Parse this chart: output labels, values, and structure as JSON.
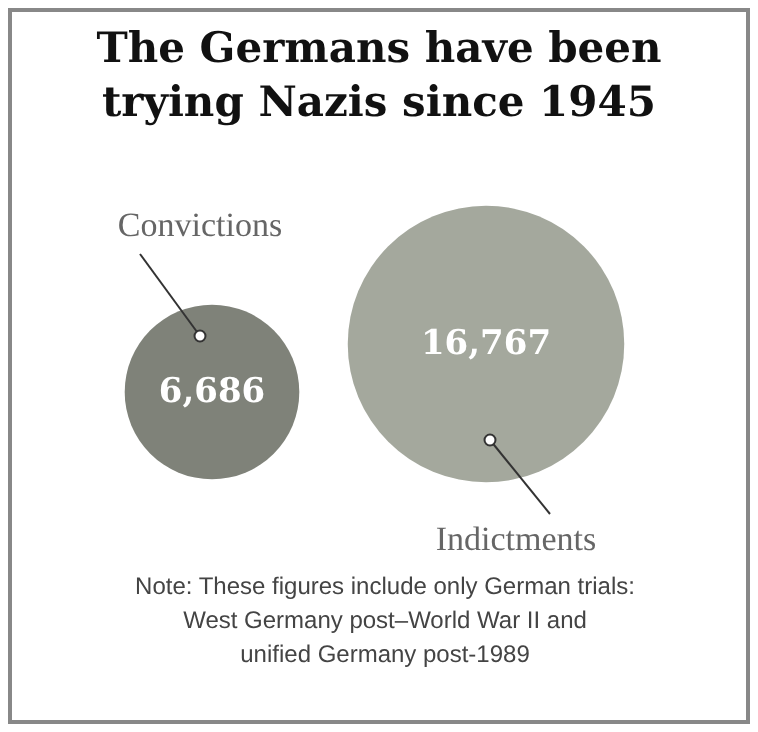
{
  "chart_data": {
    "type": "other",
    "title": "The Germans have been\ntrying Nazis since 1945",
    "categories": [
      "Convictions",
      "Indictments"
    ],
    "values": [
      6686,
      16767
    ],
    "colors": [
      "#7f8279",
      "#a4a89d"
    ],
    "data_labels": true,
    "value_labels": [
      "6,686",
      "16,767"
    ],
    "annotations": [
      "Note: These figures include only German trials:\nWest Germany post–World War II and\nunified Germany post-1989"
    ]
  }
}
